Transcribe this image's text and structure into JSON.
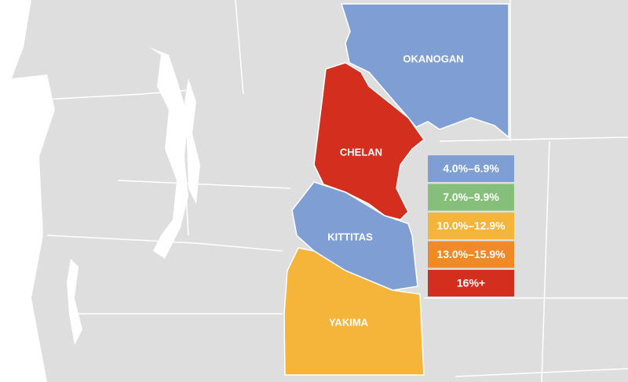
{
  "counties": [
    {
      "name": "OKANOGAN",
      "color": "#7f9fd4"
    },
    {
      "name": "CHELAN",
      "color": "#d42e1e"
    },
    {
      "name": "KITTITAS",
      "color": "#7f9fd4"
    },
    {
      "name": "YAKIMA",
      "color": "#f5b43a"
    }
  ],
  "legend": [
    {
      "label": "4.0%–6.9%",
      "color": "#7f9fd4"
    },
    {
      "label": "7.0%–9.9%",
      "color": "#86bf7a"
    },
    {
      "label": "10.0%–12.9%",
      "color": "#f5b43a"
    },
    {
      "label": "13.0%–15.9%",
      "color": "#f08a28"
    },
    {
      "label": "16%+",
      "color": "#d42e1e"
    }
  ]
}
